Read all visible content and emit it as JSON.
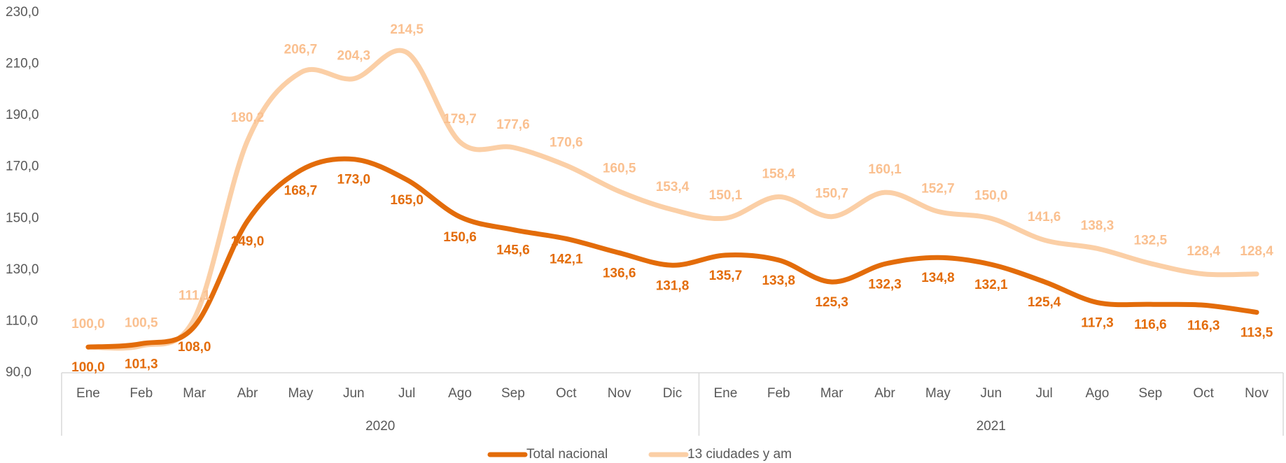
{
  "chart_data": {
    "type": "line",
    "groups": [
      {
        "label": "2020",
        "categories": [
          "Ene",
          "Feb",
          "Mar",
          "Abr",
          "May",
          "Jun",
          "Jul",
          "Ago",
          "Sep",
          "Oct",
          "Nov",
          "Dic"
        ]
      },
      {
        "label": "2021",
        "categories": [
          "Ene",
          "Feb",
          "Mar",
          "Abr",
          "May",
          "Jun",
          "Jul",
          "Ago",
          "Sep",
          "Oct",
          "Nov"
        ]
      }
    ],
    "series": [
      {
        "name": "Total nacional",
        "color": "#e36c0a",
        "values": [
          100.0,
          101.3,
          108.0,
          149.0,
          168.7,
          173.0,
          165.0,
          150.6,
          145.6,
          142.1,
          136.6,
          131.8,
          135.7,
          133.8,
          125.3,
          132.3,
          134.8,
          132.1,
          125.4,
          117.3,
          116.6,
          116.3,
          113.5
        ],
        "value_labels": [
          "100,0",
          "101,3",
          "108,0",
          "149,0",
          "168,7",
          "173,0",
          "165,0",
          "150,6",
          "145,6",
          "142,1",
          "136,6",
          "131,8",
          "135,7",
          "133,8",
          "125,3",
          "132,3",
          "134,8",
          "132,1",
          "125,4",
          "117,3",
          "116,6",
          "116,3",
          "113,5"
        ]
      },
      {
        "name": "13 ciudades y am",
        "color": "#fbcfa6",
        "values": [
          100.0,
          100.5,
          111.1,
          180.2,
          206.7,
          204.3,
          214.5,
          179.7,
          177.6,
          170.6,
          160.5,
          153.4,
          150.1,
          158.4,
          150.7,
          160.1,
          152.7,
          150.0,
          141.6,
          138.3,
          132.5,
          128.4,
          128.4
        ],
        "value_labels": [
          "100,0",
          "100,5",
          "111,1",
          "180,2",
          "206,7",
          "204,3",
          "214,5",
          "179,7",
          "177,6",
          "170,6",
          "160,5",
          "153,4",
          "150,1",
          "158,4",
          "150,7",
          "160,1",
          "152,7",
          "150,0",
          "141,6",
          "138,3",
          "132,5",
          "128,4",
          "128,4"
        ]
      }
    ],
    "ylim": [
      90,
      230
    ],
    "yticks": [
      {
        "value": 90,
        "label": "90,0"
      },
      {
        "value": 110,
        "label": "110,0"
      },
      {
        "value": 130,
        "label": "130,0"
      },
      {
        "value": 150,
        "label": "150,0"
      },
      {
        "value": 170,
        "label": "170,0"
      },
      {
        "value": 190,
        "label": "190,0"
      },
      {
        "value": 210,
        "label": "210,0"
      },
      {
        "value": 230,
        "label": "230,0"
      }
    ],
    "grid": false,
    "legend": "bottom"
  }
}
